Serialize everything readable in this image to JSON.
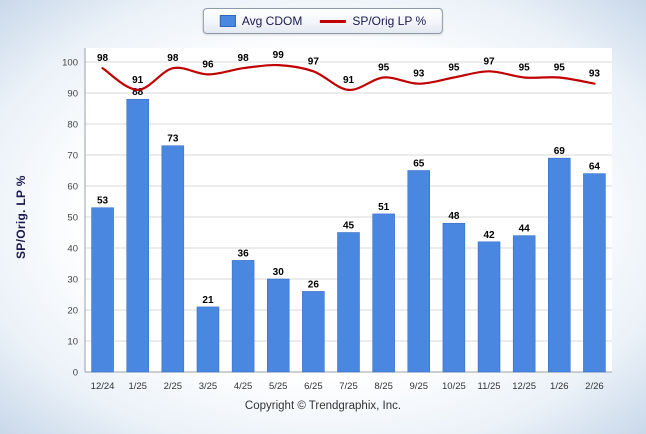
{
  "chart_data": {
    "type": "bar+line",
    "categories": [
      "12/24",
      "1/25",
      "2/25",
      "3/25",
      "4/25",
      "5/25",
      "6/25",
      "7/25",
      "8/25",
      "9/25",
      "10/25",
      "11/25",
      "12/25",
      "1/26",
      "2/26"
    ],
    "series": [
      {
        "name": "Avg CDOM",
        "type": "bar",
        "color": "#4a87e0",
        "edge_color": "#2f66c0",
        "values": [
          53,
          88,
          73,
          21,
          36,
          30,
          26,
          45,
          51,
          65,
          48,
          42,
          44,
          69,
          64
        ]
      },
      {
        "name": "SP/Orig LP %",
        "type": "line",
        "color": "#c00000",
        "values": [
          98,
          91,
          98,
          96,
          98,
          99,
          97,
          91,
          95,
          93,
          95,
          97,
          95,
          95,
          93
        ]
      }
    ],
    "title": "",
    "xlabel": "",
    "ylabel": "SP/Orig. LP %",
    "ylim": [
      0,
      100
    ],
    "ytick_step": 10,
    "grid": true,
    "legend_position": "top-center",
    "colors": {
      "grid": "#d9d9d9",
      "axis": "#9aa0a6",
      "tick_text": "#444444",
      "category_text": "#333333",
      "value_label": "#000000",
      "plot_background": "#ffffff"
    }
  },
  "footer": {
    "copyright": "Copyright © Trendgraphix, Inc."
  }
}
